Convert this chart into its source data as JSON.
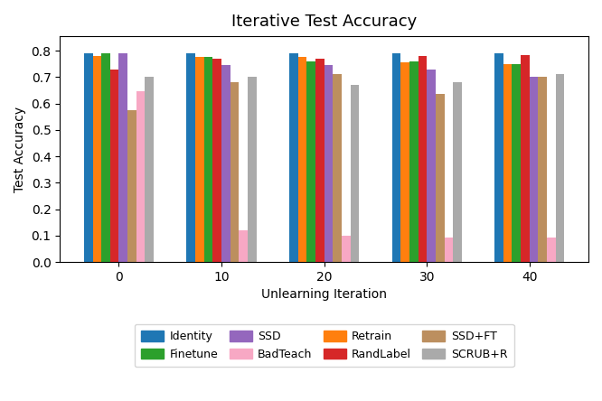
{
  "title": "Iterative Test Accuracy",
  "xlabel": "Unlearning Iteration",
  "ylabel": "Test Accuracy",
  "iterations": [
    0,
    10,
    20,
    30,
    40
  ],
  "series_order": [
    "Identity",
    "Retrain",
    "Finetune",
    "RandLabel",
    "SSD",
    "SSD+FT",
    "BadTeach",
    "SCRUB+R"
  ],
  "series": {
    "Identity": [
      0.79,
      0.79,
      0.79,
      0.79,
      0.79
    ],
    "Retrain": [
      0.78,
      0.775,
      0.775,
      0.755,
      0.75
    ],
    "Finetune": [
      0.79,
      0.775,
      0.76,
      0.76,
      0.75
    ],
    "RandLabel": [
      0.73,
      0.77,
      0.77,
      0.78,
      0.785
    ],
    "SSD": [
      0.79,
      0.745,
      0.745,
      0.73,
      0.7
    ],
    "SSD+FT": [
      0.575,
      0.68,
      0.71,
      0.635,
      0.7
    ],
    "BadTeach": [
      0.645,
      0.12,
      0.1,
      0.093,
      0.093
    ],
    "SCRUB+R": [
      0.7,
      0.7,
      0.67,
      0.68,
      0.71
    ]
  },
  "colors": {
    "Identity": "#1f77b4",
    "Retrain": "#ff7f0e",
    "Finetune": "#2ca02c",
    "RandLabel": "#d62728",
    "SSD": "#9467bd",
    "SSD+FT": "#bc8f5f",
    "BadTeach": "#f7a8c4",
    "SCRUB+R": "#aaaaaa"
  },
  "ylim": [
    0.0,
    0.855
  ],
  "yticks": [
    0.0,
    0.1,
    0.2,
    0.3,
    0.4,
    0.5,
    0.6,
    0.7,
    0.8
  ],
  "bar_width": 0.085,
  "legend_order": [
    "Identity",
    "Finetune",
    "SSD",
    "BadTeach",
    "Retrain",
    "RandLabel",
    "SSD+FT",
    "SCRUB+R"
  ],
  "figsize": [
    6.66,
    4.44
  ],
  "dpi": 100
}
